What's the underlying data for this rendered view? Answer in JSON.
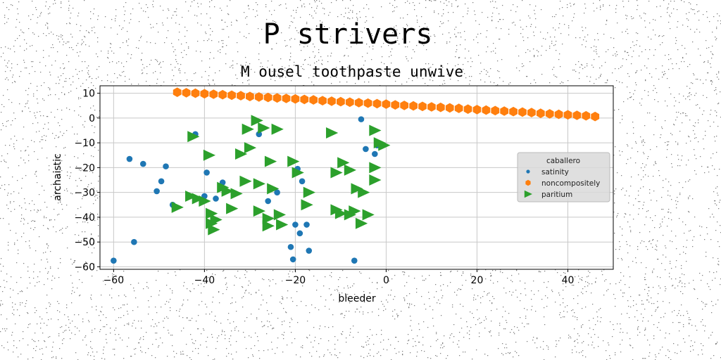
{
  "chart_data": {
    "type": "scatter",
    "title": "P strivers",
    "subtitle": "M ousel toothpaste unwive",
    "xlabel": "bleeder",
    "ylabel": "archaistic",
    "xlim": [
      -63,
      50
    ],
    "ylim": [
      -61,
      13
    ],
    "xticks": [
      -60,
      -40,
      -20,
      0,
      20,
      40
    ],
    "yticks": [
      10,
      0,
      -10,
      -20,
      -30,
      -40,
      -50,
      -60
    ],
    "grid": true,
    "legend": {
      "title": "caballero",
      "placement": "center-right"
    },
    "series": [
      {
        "name": "satinity",
        "color": "#1f77b4",
        "marker": "circle",
        "points": [
          [
            -60,
            -57.5
          ],
          [
            -56.5,
            -16.5
          ],
          [
            -55.5,
            -50
          ],
          [
            -53.5,
            -18.5
          ],
          [
            -50.5,
            -29.5
          ],
          [
            -49.5,
            -25.5
          ],
          [
            -48.5,
            -19.5
          ],
          [
            -47,
            -35
          ],
          [
            -42,
            -6.5
          ],
          [
            -40,
            -31.5
          ],
          [
            -39.5,
            -22
          ],
          [
            -37.5,
            -32.5
          ],
          [
            -36,
            -26
          ],
          [
            -28,
            -6.5
          ],
          [
            -26,
            -33.5
          ],
          [
            -24,
            -30
          ],
          [
            -21,
            -52
          ],
          [
            -20.5,
            -57
          ],
          [
            -20,
            -43
          ],
          [
            -19.5,
            -20.5
          ],
          [
            -19,
            -46.5
          ],
          [
            -18.5,
            -25.5
          ],
          [
            -17.5,
            -43
          ],
          [
            -17,
            -53.5
          ],
          [
            -7,
            -57.5
          ],
          [
            -5.5,
            -0.5
          ],
          [
            -4.5,
            -12.5
          ],
          [
            -2.5,
            -14.5
          ],
          [
            -2,
            -11
          ]
        ]
      },
      {
        "name": "noncompositely",
        "color": "#ff7f0e",
        "marker": "hexagon",
        "points": [
          [
            -46,
            10.4
          ],
          [
            -44,
            10.2
          ],
          [
            -42,
            10.0
          ],
          [
            -40,
            9.8
          ],
          [
            -38,
            9.6
          ],
          [
            -36,
            9.4
          ],
          [
            -34,
            9.2
          ],
          [
            -32,
            9.0
          ],
          [
            -30,
            8.7
          ],
          [
            -28,
            8.5
          ],
          [
            -26,
            8.3
          ],
          [
            -24,
            8.1
          ],
          [
            -22,
            7.9
          ],
          [
            -20,
            7.7
          ],
          [
            -18,
            7.5
          ],
          [
            -16,
            7.3
          ],
          [
            -14,
            7.0
          ],
          [
            -12,
            6.8
          ],
          [
            -10,
            6.6
          ],
          [
            -8,
            6.4
          ],
          [
            -6,
            6.2
          ],
          [
            -4,
            6.0
          ],
          [
            -2,
            5.8
          ],
          [
            0,
            5.6
          ],
          [
            2,
            5.3
          ],
          [
            4,
            5.1
          ],
          [
            6,
            4.9
          ],
          [
            8,
            4.7
          ],
          [
            10,
            4.5
          ],
          [
            12,
            4.3
          ],
          [
            14,
            4.1
          ],
          [
            16,
            3.9
          ],
          [
            18,
            3.6
          ],
          [
            20,
            3.4
          ],
          [
            22,
            3.2
          ],
          [
            24,
            3.0
          ],
          [
            26,
            2.8
          ],
          [
            28,
            2.6
          ],
          [
            30,
            2.4
          ],
          [
            32,
            2.2
          ],
          [
            34,
            1.9
          ],
          [
            36,
            1.7
          ],
          [
            38,
            1.5
          ],
          [
            40,
            1.3
          ],
          [
            42,
            1.1
          ],
          [
            44,
            0.9
          ],
          [
            46,
            0.6
          ]
        ]
      },
      {
        "name": "paritium",
        "color": "#2ca02c",
        "marker": "triangle-right",
        "points": [
          [
            -46,
            -36
          ],
          [
            -43,
            -31.5
          ],
          [
            -42.5,
            -7.5
          ],
          [
            -41.5,
            -32.5
          ],
          [
            -40,
            -33.5
          ],
          [
            -39,
            -15
          ],
          [
            -38.5,
            -38.5
          ],
          [
            -38.5,
            -42.5
          ],
          [
            -38,
            -45
          ],
          [
            -37.5,
            -41
          ],
          [
            -36,
            -28
          ],
          [
            -35,
            -29.5
          ],
          [
            -34,
            -36.5
          ],
          [
            -33,
            -30.5
          ],
          [
            -32,
            -14.5
          ],
          [
            -31,
            -25.5
          ],
          [
            -30.5,
            -4.5
          ],
          [
            -30,
            -12
          ],
          [
            -28.5,
            -1
          ],
          [
            -28,
            -37.5
          ],
          [
            -28,
            -26.5
          ],
          [
            -27,
            -4
          ],
          [
            -26,
            -40.5
          ],
          [
            -26,
            -43.5
          ],
          [
            -25.5,
            -17.5
          ],
          [
            -25,
            -28.5
          ],
          [
            -24,
            -4.5
          ],
          [
            -23.5,
            -39
          ],
          [
            -23,
            -43
          ],
          [
            -20.5,
            -17.5
          ],
          [
            -19.5,
            -22
          ],
          [
            -17.5,
            -35
          ],
          [
            -17,
            -30
          ],
          [
            -12,
            -6
          ],
          [
            -11,
            -37
          ],
          [
            -11,
            -22
          ],
          [
            -10,
            -38.5
          ],
          [
            -9.5,
            -18
          ],
          [
            -8,
            -21
          ],
          [
            -8,
            -39
          ],
          [
            -7,
            -37.5
          ],
          [
            -6.5,
            -28.5
          ],
          [
            -5.5,
            -42.5
          ],
          [
            -5,
            -30
          ],
          [
            -4,
            -39
          ],
          [
            -2.5,
            -20
          ],
          [
            -2.5,
            -25
          ],
          [
            -2.5,
            -5
          ],
          [
            -1.5,
            -10
          ],
          [
            -0.5,
            -11
          ]
        ]
      }
    ]
  }
}
